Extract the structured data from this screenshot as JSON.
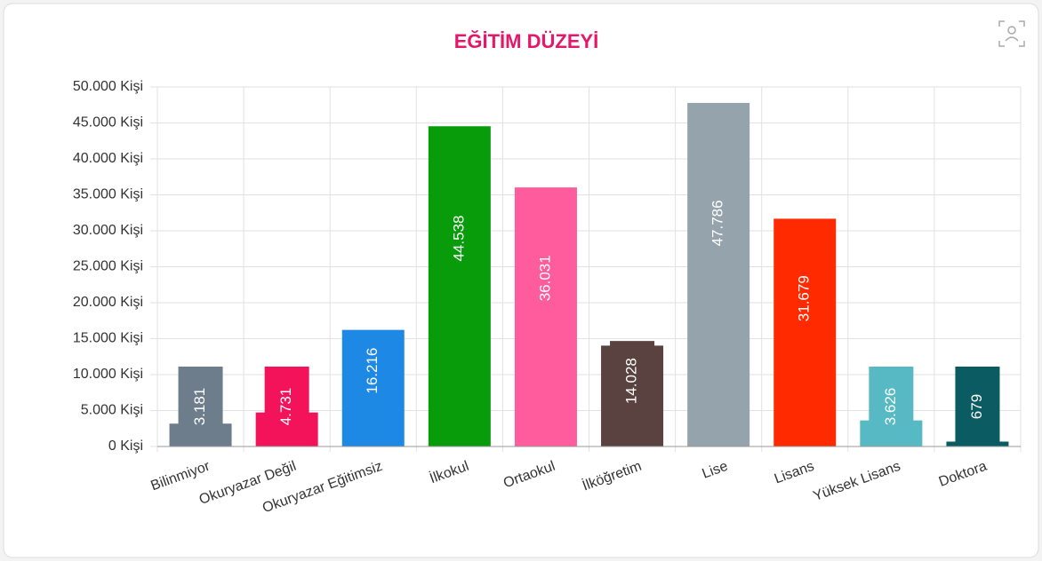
{
  "chart_data": {
    "type": "bar",
    "title": "EĞİTİM DÜZEYİ",
    "categories": [
      "Bilinmiyor",
      "Okuryazar Değil",
      "Okuryazar Eğitimsiz",
      "İlkokul",
      "Ortaokul",
      "İlköğretim",
      "Lise",
      "Lisans",
      "Yüksek Lisans",
      "Doktora"
    ],
    "values": [
      3181,
      4731,
      16216,
      44538,
      36031,
      14028,
      47786,
      31679,
      3626,
      679
    ],
    "value_labels": [
      "3.181",
      "4.731",
      "16.216",
      "44.538",
      "36.031",
      "14.028",
      "47.786",
      "31.679",
      "3.626",
      "679"
    ],
    "colors": [
      "#6e7d8c",
      "#f2135b",
      "#1e88e5",
      "#089b0a",
      "#ff5c9d",
      "#5a4240",
      "#95a3ad",
      "#ff2a00",
      "#56b9c4",
      "#0b5b62"
    ],
    "ylim": [
      0,
      50000
    ],
    "yticks": [
      {
        "value": 0,
        "label": "0 Kişi"
      },
      {
        "value": 5000,
        "label": "5.000 Kişi"
      },
      {
        "value": 10000,
        "label": "10.000 Kişi"
      },
      {
        "value": 15000,
        "label": "15.000 Kişi"
      },
      {
        "value": 20000,
        "label": "20.000 Kişi"
      },
      {
        "value": 25000,
        "label": "25.000 Kişi"
      },
      {
        "value": 30000,
        "label": "30.000 Kişi"
      },
      {
        "value": 35000,
        "label": "35.000 Kişi"
      },
      {
        "value": 40000,
        "label": "40.000 Kişi"
      },
      {
        "value": 45000,
        "label": "45.000 Kişi"
      },
      {
        "value": 50000,
        "label": "50.000 Kişi"
      }
    ],
    "grid": true
  }
}
